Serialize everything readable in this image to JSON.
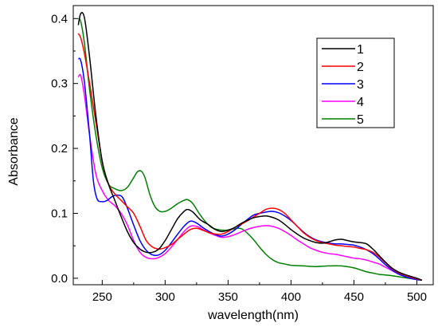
{
  "chart_data": {
    "type": "line",
    "title": "",
    "xlabel": "wavelength(nm)",
    "ylabel": "Absorbance",
    "xlim": [
      227,
      513
    ],
    "ylim": [
      -0.01,
      0.42
    ],
    "xticks": [
      250,
      300,
      350,
      400,
      450,
      500
    ],
    "yticks": [
      0.0,
      0.1,
      0.2,
      0.3,
      0.4
    ],
    "ytick_labels": [
      "0.0",
      "0.1",
      "0.2",
      "0.3",
      "0.4"
    ],
    "grid": false,
    "legend_position": "top-right",
    "series": [
      {
        "name": "1",
        "color": "#000000",
        "points": [
          [
            231,
            0.39
          ],
          [
            233,
            0.408
          ],
          [
            236,
            0.4
          ],
          [
            240,
            0.34
          ],
          [
            245,
            0.25
          ],
          [
            250,
            0.18
          ],
          [
            255,
            0.145
          ],
          [
            260,
            0.12
          ],
          [
            265,
            0.095
          ],
          [
            270,
            0.072
          ],
          [
            275,
            0.055
          ],
          [
            280,
            0.045
          ],
          [
            285,
            0.04
          ],
          [
            290,
            0.04
          ],
          [
            295,
            0.045
          ],
          [
            300,
            0.058
          ],
          [
            305,
            0.075
          ],
          [
            310,
            0.092
          ],
          [
            315,
            0.103
          ],
          [
            318,
            0.106
          ],
          [
            322,
            0.102
          ],
          [
            328,
            0.09
          ],
          [
            334,
            0.083
          ],
          [
            340,
            0.075
          ],
          [
            345,
            0.072
          ],
          [
            350,
            0.074
          ],
          [
            355,
            0.078
          ],
          [
            360,
            0.084
          ],
          [
            365,
            0.089
          ],
          [
            370,
            0.093
          ],
          [
            375,
            0.095
          ],
          [
            380,
            0.096
          ],
          [
            385,
            0.094
          ],
          [
            390,
            0.09
          ],
          [
            395,
            0.083
          ],
          [
            400,
            0.075
          ],
          [
            405,
            0.068
          ],
          [
            410,
            0.062
          ],
          [
            415,
            0.058
          ],
          [
            420,
            0.055
          ],
          [
            425,
            0.054
          ],
          [
            430,
            0.056
          ],
          [
            435,
            0.059
          ],
          [
            440,
            0.06
          ],
          [
            445,
            0.058
          ],
          [
            450,
            0.056
          ],
          [
            455,
            0.055
          ],
          [
            460,
            0.053
          ],
          [
            465,
            0.045
          ],
          [
            470,
            0.035
          ],
          [
            475,
            0.025
          ],
          [
            480,
            0.016
          ],
          [
            485,
            0.01
          ],
          [
            490,
            0.006
          ],
          [
            495,
            0.003
          ],
          [
            500,
            0.0
          ],
          [
            504,
            -0.003
          ]
        ]
      },
      {
        "name": "2",
        "color": "#ff0000",
        "points": [
          [
            231,
            0.377
          ],
          [
            233,
            0.37
          ],
          [
            236,
            0.345
          ],
          [
            240,
            0.3
          ],
          [
            245,
            0.24
          ],
          [
            250,
            0.18
          ],
          [
            255,
            0.145
          ],
          [
            260,
            0.13
          ],
          [
            265,
            0.12
          ],
          [
            270,
            0.11
          ],
          [
            275,
            0.1
          ],
          [
            280,
            0.08
          ],
          [
            285,
            0.058
          ],
          [
            290,
            0.048
          ],
          [
            295,
            0.045
          ],
          [
            300,
            0.047
          ],
          [
            305,
            0.052
          ],
          [
            310,
            0.06
          ],
          [
            315,
            0.068
          ],
          [
            320,
            0.075
          ],
          [
            325,
            0.077
          ],
          [
            330,
            0.074
          ],
          [
            335,
            0.07
          ],
          [
            340,
            0.068
          ],
          [
            345,
            0.068
          ],
          [
            350,
            0.072
          ],
          [
            355,
            0.078
          ],
          [
            360,
            0.083
          ],
          [
            365,
            0.088
          ],
          [
            370,
            0.094
          ],
          [
            375,
            0.1
          ],
          [
            380,
            0.106
          ],
          [
            385,
            0.108
          ],
          [
            390,
            0.106
          ],
          [
            395,
            0.1
          ],
          [
            400,
            0.09
          ],
          [
            405,
            0.08
          ],
          [
            410,
            0.07
          ],
          [
            415,
            0.063
          ],
          [
            420,
            0.058
          ],
          [
            425,
            0.055
          ],
          [
            430,
            0.053
          ],
          [
            435,
            0.051
          ],
          [
            440,
            0.05
          ],
          [
            445,
            0.049
          ],
          [
            450,
            0.048
          ],
          [
            455,
            0.046
          ],
          [
            460,
            0.044
          ],
          [
            465,
            0.04
          ],
          [
            470,
            0.033
          ],
          [
            475,
            0.024
          ],
          [
            480,
            0.015
          ],
          [
            485,
            0.009
          ],
          [
            490,
            0.005
          ],
          [
            495,
            0.002
          ],
          [
            500,
            -0.001
          ],
          [
            504,
            -0.003
          ]
        ]
      },
      {
        "name": "3",
        "color": "#0000ff",
        "points": [
          [
            231,
            0.338
          ],
          [
            233,
            0.335
          ],
          [
            236,
            0.3
          ],
          [
            240,
            0.22
          ],
          [
            243,
            0.15
          ],
          [
            246,
            0.122
          ],
          [
            250,
            0.118
          ],
          [
            254,
            0.12
          ],
          [
            258,
            0.126
          ],
          [
            262,
            0.128
          ],
          [
            266,
            0.125
          ],
          [
            270,
            0.108
          ],
          [
            275,
            0.082
          ],
          [
            280,
            0.058
          ],
          [
            285,
            0.043
          ],
          [
            290,
            0.036
          ],
          [
            295,
            0.036
          ],
          [
            300,
            0.043
          ],
          [
            305,
            0.055
          ],
          [
            310,
            0.068
          ],
          [
            315,
            0.08
          ],
          [
            320,
            0.088
          ],
          [
            325,
            0.085
          ],
          [
            330,
            0.078
          ],
          [
            335,
            0.072
          ],
          [
            340,
            0.067
          ],
          [
            345,
            0.065
          ],
          [
            350,
            0.068
          ],
          [
            355,
            0.074
          ],
          [
            360,
            0.082
          ],
          [
            365,
            0.09
          ],
          [
            370,
            0.097
          ],
          [
            375,
            0.1
          ],
          [
            380,
            0.102
          ],
          [
            385,
            0.103
          ],
          [
            390,
            0.101
          ],
          [
            395,
            0.096
          ],
          [
            400,
            0.089
          ],
          [
            405,
            0.08
          ],
          [
            410,
            0.071
          ],
          [
            415,
            0.064
          ],
          [
            420,
            0.059
          ],
          [
            425,
            0.056
          ],
          [
            430,
            0.054
          ],
          [
            435,
            0.053
          ],
          [
            440,
            0.053
          ],
          [
            445,
            0.052
          ],
          [
            450,
            0.051
          ],
          [
            455,
            0.048
          ],
          [
            460,
            0.044
          ],
          [
            465,
            0.038
          ],
          [
            470,
            0.03
          ],
          [
            475,
            0.021
          ],
          [
            480,
            0.013
          ],
          [
            485,
            0.007
          ],
          [
            490,
            0.003
          ],
          [
            495,
            0.0
          ],
          [
            500,
            -0.002
          ],
          [
            504,
            -0.003
          ]
        ]
      },
      {
        "name": "4",
        "color": "#ff00ff",
        "points": [
          [
            231,
            0.31
          ],
          [
            233,
            0.312
          ],
          [
            236,
            0.28
          ],
          [
            240,
            0.22
          ],
          [
            245,
            0.16
          ],
          [
            250,
            0.135
          ],
          [
            255,
            0.12
          ],
          [
            260,
            0.112
          ],
          [
            265,
            0.1
          ],
          [
            270,
            0.082
          ],
          [
            275,
            0.058
          ],
          [
            280,
            0.04
          ],
          [
            285,
            0.032
          ],
          [
            290,
            0.03
          ],
          [
            295,
            0.032
          ],
          [
            300,
            0.038
          ],
          [
            305,
            0.048
          ],
          [
            310,
            0.06
          ],
          [
            315,
            0.072
          ],
          [
            320,
            0.08
          ],
          [
            325,
            0.08
          ],
          [
            330,
            0.075
          ],
          [
            335,
            0.07
          ],
          [
            340,
            0.066
          ],
          [
            345,
            0.063
          ],
          [
            350,
            0.064
          ],
          [
            355,
            0.067
          ],
          [
            360,
            0.071
          ],
          [
            365,
            0.075
          ],
          [
            370,
            0.078
          ],
          [
            375,
            0.08
          ],
          [
            380,
            0.081
          ],
          [
            385,
            0.08
          ],
          [
            390,
            0.077
          ],
          [
            395,
            0.072
          ],
          [
            400,
            0.066
          ],
          [
            405,
            0.059
          ],
          [
            410,
            0.053
          ],
          [
            415,
            0.047
          ],
          [
            420,
            0.043
          ],
          [
            425,
            0.04
          ],
          [
            430,
            0.038
          ],
          [
            435,
            0.037
          ],
          [
            440,
            0.035
          ],
          [
            445,
            0.033
          ],
          [
            450,
            0.031
          ],
          [
            455,
            0.03
          ],
          [
            460,
            0.028
          ],
          [
            465,
            0.025
          ],
          [
            470,
            0.022
          ],
          [
            475,
            0.017
          ],
          [
            480,
            0.012
          ],
          [
            485,
            0.007
          ],
          [
            490,
            0.003
          ],
          [
            495,
            0.0
          ],
          [
            500,
            -0.002
          ],
          [
            504,
            -0.003
          ]
        ]
      },
      {
        "name": "5",
        "color": "#008000",
        "points": [
          [
            231,
            0.4
          ],
          [
            233,
            0.395
          ],
          [
            236,
            0.36
          ],
          [
            240,
            0.29
          ],
          [
            245,
            0.22
          ],
          [
            250,
            0.17
          ],
          [
            255,
            0.145
          ],
          [
            260,
            0.138
          ],
          [
            265,
            0.135
          ],
          [
            270,
            0.14
          ],
          [
            275,
            0.155
          ],
          [
            278,
            0.164
          ],
          [
            281,
            0.165
          ],
          [
            284,
            0.155
          ],
          [
            288,
            0.128
          ],
          [
            292,
            0.11
          ],
          [
            296,
            0.103
          ],
          [
            300,
            0.103
          ],
          [
            305,
            0.108
          ],
          [
            310,
            0.115
          ],
          [
            315,
            0.12
          ],
          [
            318,
            0.121
          ],
          [
            322,
            0.115
          ],
          [
            327,
            0.1
          ],
          [
            332,
            0.087
          ],
          [
            337,
            0.078
          ],
          [
            342,
            0.075
          ],
          [
            347,
            0.074
          ],
          [
            352,
            0.075
          ],
          [
            357,
            0.077
          ],
          [
            361,
            0.076
          ],
          [
            365,
            0.07
          ],
          [
            370,
            0.06
          ],
          [
            375,
            0.048
          ],
          [
            380,
            0.037
          ],
          [
            385,
            0.029
          ],
          [
            390,
            0.024
          ],
          [
            395,
            0.022
          ],
          [
            400,
            0.02
          ],
          [
            410,
            0.019
          ],
          [
            420,
            0.018
          ],
          [
            430,
            0.019
          ],
          [
            440,
            0.019
          ],
          [
            450,
            0.016
          ],
          [
            455,
            0.013
          ],
          [
            460,
            0.01
          ],
          [
            465,
            0.008
          ],
          [
            470,
            0.006
          ],
          [
            475,
            0.005
          ],
          [
            480,
            0.004
          ],
          [
            490,
            0.001
          ],
          [
            500,
            -0.002
          ],
          [
            504,
            -0.003
          ]
        ]
      }
    ]
  }
}
